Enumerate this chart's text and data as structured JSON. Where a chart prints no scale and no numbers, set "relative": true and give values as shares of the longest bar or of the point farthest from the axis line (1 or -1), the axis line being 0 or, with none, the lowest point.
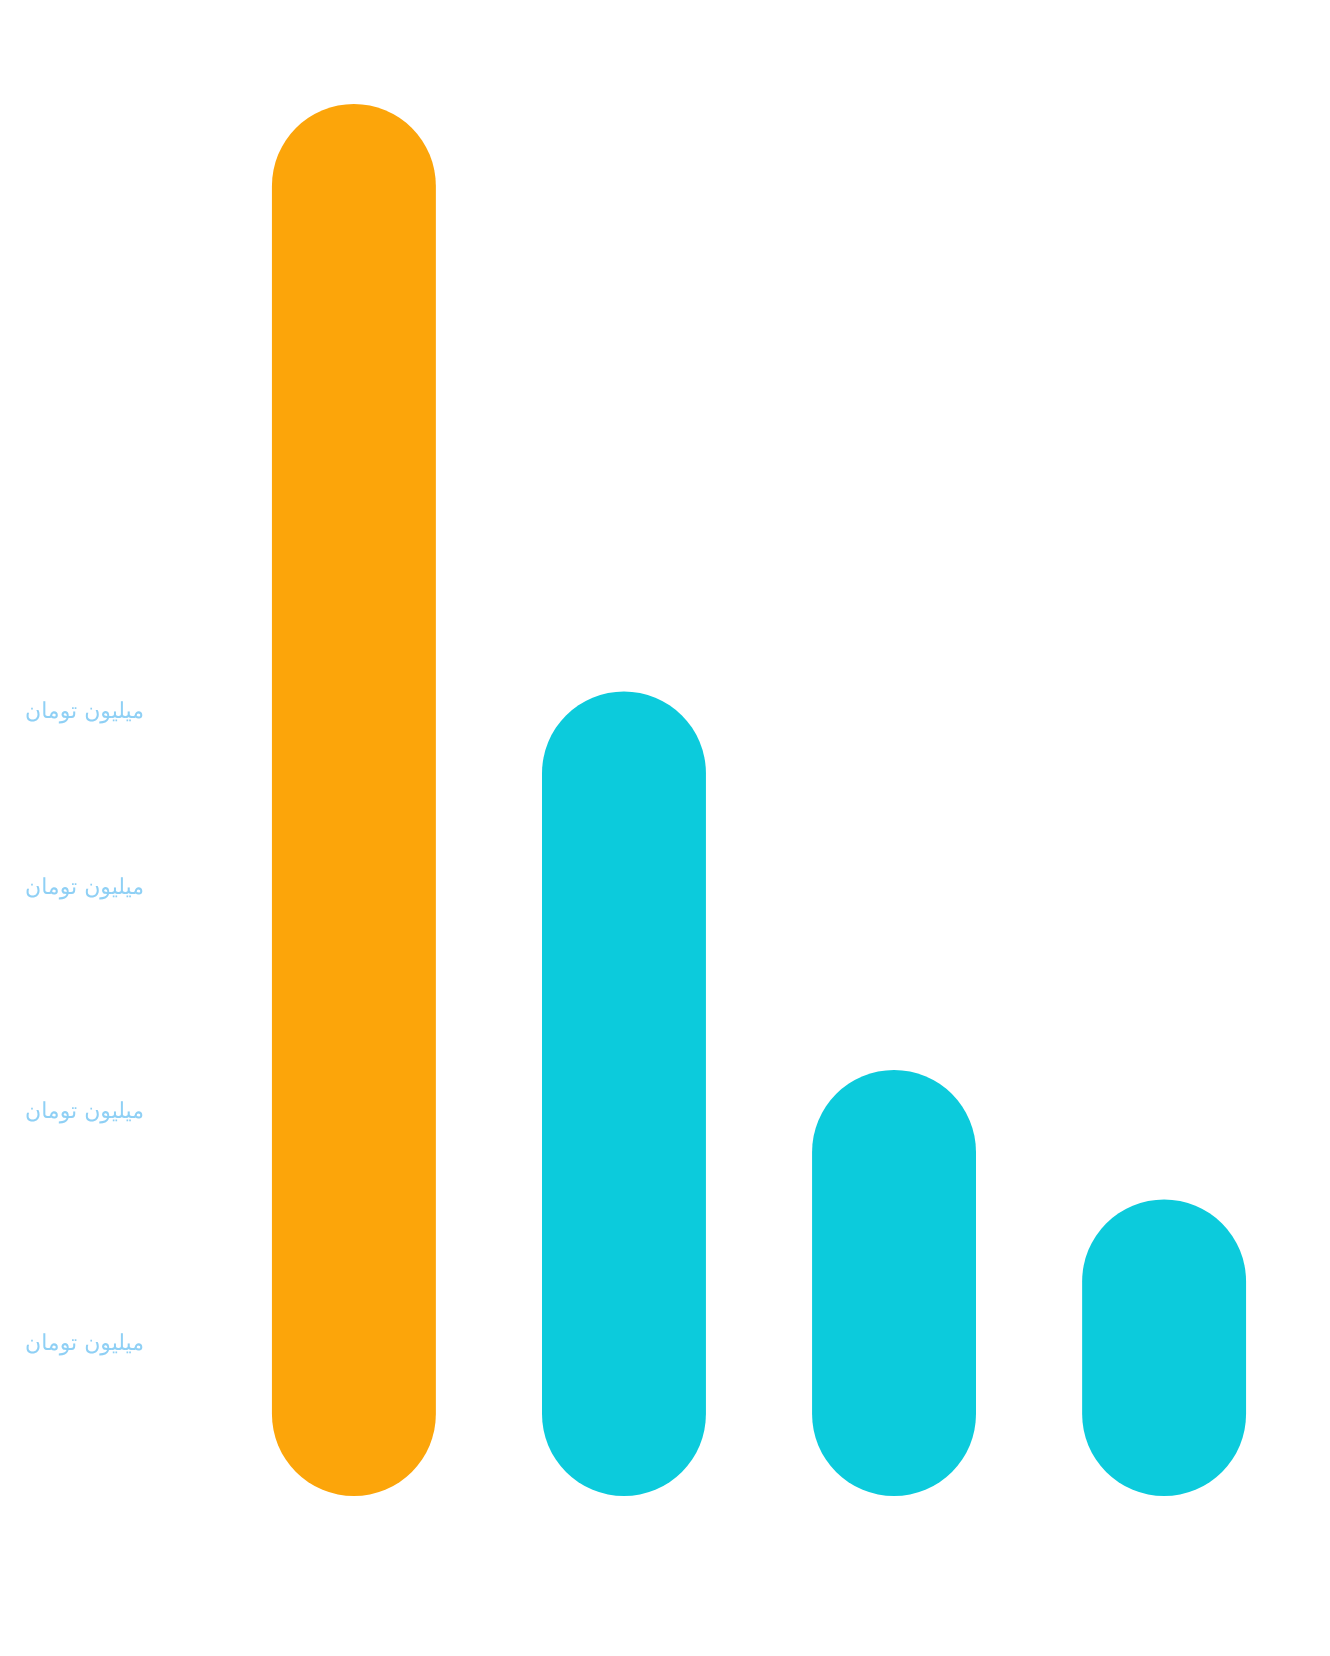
{
  "chart_data": {
    "type": "bar",
    "relative": true,
    "categories": [
      null,
      null,
      null,
      null
    ],
    "values": [
      1,
      0.578,
      0.306,
      0.213
    ],
    "colors": [
      "#fca50a",
      "#0ccbdc",
      "#0ccbdc",
      "#0ccbdc"
    ],
    "annotations": [
      "میلیون تومان",
      "میلیون تومان",
      "میلیون تومان",
      "میلیون تومان"
    ]
  }
}
